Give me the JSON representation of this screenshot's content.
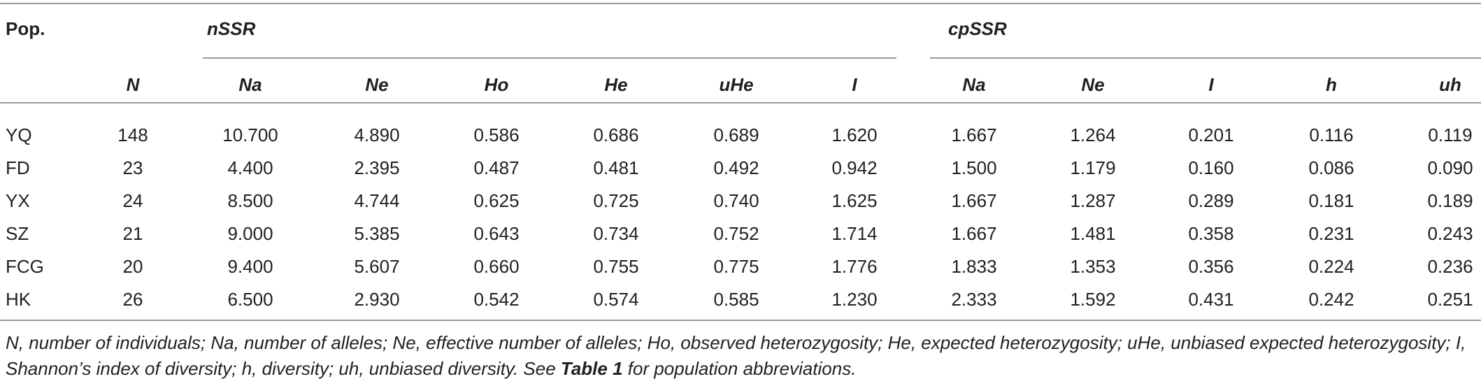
{
  "table": {
    "pop_header": "Pop.",
    "group_headers": [
      "nSSR",
      "cpSSR"
    ],
    "columns": [
      "N",
      "Na",
      "Ne",
      "Ho",
      "He",
      "uHe",
      "I",
      "Na",
      "Ne",
      "I",
      "h",
      "uh"
    ],
    "rows": [
      {
        "pop": "YQ",
        "values": [
          "148",
          "10.700",
          "4.890",
          "0.586",
          "0.686",
          "0.689",
          "1.620",
          "1.667",
          "1.264",
          "0.201",
          "0.116",
          "0.119"
        ]
      },
      {
        "pop": "FD",
        "values": [
          "23",
          "4.400",
          "2.395",
          "0.487",
          "0.481",
          "0.492",
          "0.942",
          "1.500",
          "1.179",
          "0.160",
          "0.086",
          "0.090"
        ]
      },
      {
        "pop": "YX",
        "values": [
          "24",
          "8.500",
          "4.744",
          "0.625",
          "0.725",
          "0.740",
          "1.625",
          "1.667",
          "1.287",
          "0.289",
          "0.181",
          "0.189"
        ]
      },
      {
        "pop": "SZ",
        "values": [
          "21",
          "9.000",
          "5.385",
          "0.643",
          "0.734",
          "0.752",
          "1.714",
          "1.667",
          "1.481",
          "0.358",
          "0.231",
          "0.243"
        ]
      },
      {
        "pop": "FCG",
        "values": [
          "20",
          "9.400",
          "5.607",
          "0.660",
          "0.755",
          "0.775",
          "1.776",
          "1.833",
          "1.353",
          "0.356",
          "0.224",
          "0.236"
        ]
      },
      {
        "pop": "HK",
        "values": [
          "26",
          "6.500",
          "2.930",
          "0.542",
          "0.574",
          "0.585",
          "1.230",
          "2.333",
          "1.592",
          "0.431",
          "0.242",
          "0.251"
        ]
      }
    ]
  },
  "footnote": {
    "before": "N, number of individuals; Na, number of alleles; Ne, effective number of alleles; Ho, observed heterozygosity; He, expected heterozygosity; uHe, unbiased expected heterozygosity; I, Shannon’s index of diversity; h, diversity; uh, unbiased diversity. See ",
    "ref": "Table 1",
    "after": " for population abbreviations."
  }
}
